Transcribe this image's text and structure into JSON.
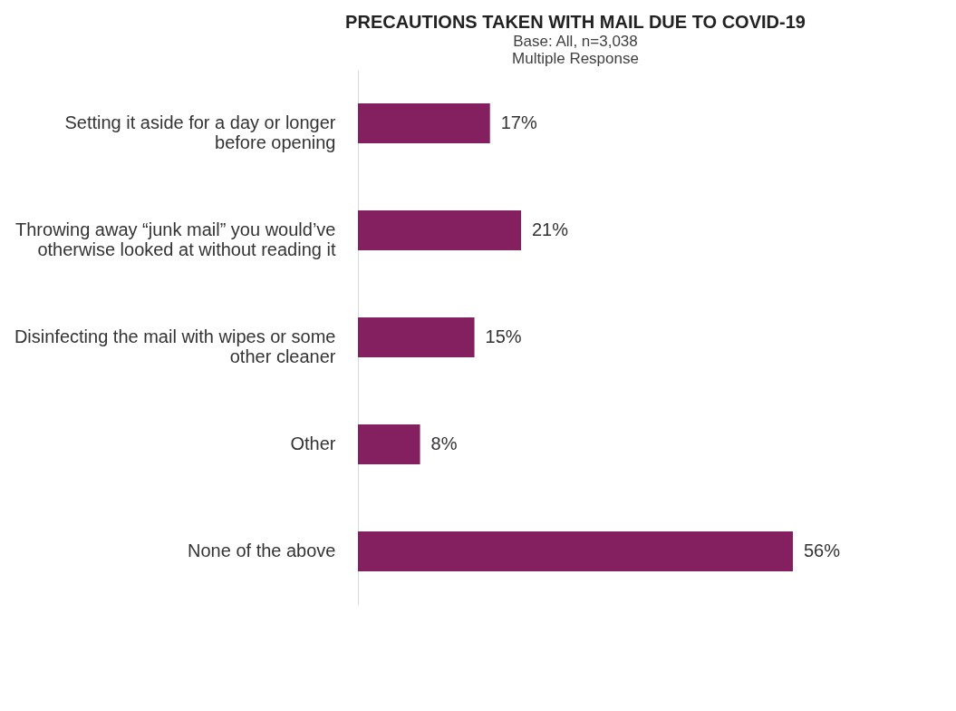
{
  "chart_data": {
    "type": "bar",
    "orientation": "horizontal",
    "title": "PRECAUTIONS TAKEN WITH MAIL DUE TO COVID-19",
    "subtitle": [
      "Base: All, n=3,038",
      "Multiple Response"
    ],
    "categories": [
      "Setting it aside for a day or longer before opening",
      "Throwing away “junk mail” you would’ve otherwise looked at without reading it",
      "Disinfecting the mail with wipes or some other cleaner",
      "Other",
      "None of the above"
    ],
    "values": [
      17,
      21,
      15,
      8,
      56
    ],
    "value_labels": [
      "17%",
      "21%",
      "15%",
      "8%",
      "56%"
    ],
    "color": "#84205f"
  }
}
